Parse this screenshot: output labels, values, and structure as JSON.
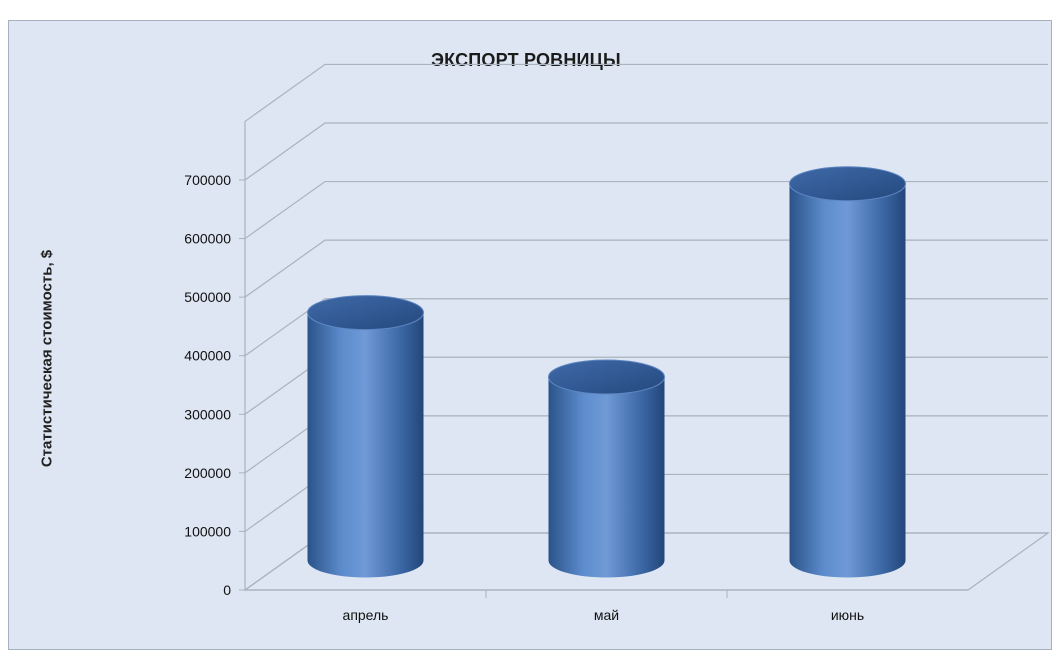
{
  "chart_data": {
    "type": "bar",
    "style": "3d-cylinder",
    "title": "ЭКСПОРТ РОВНИЦЫ",
    "ylabel": "Статистическая стоимость, $",
    "xlabel": "",
    "categories": [
      "апрель",
      "май",
      "июнь"
    ],
    "values": [
      425000,
      315000,
      645000
    ],
    "ylim": [
      0,
      700000
    ],
    "yticks": [
      0,
      100000,
      200000,
      300000,
      400000,
      500000,
      600000,
      700000
    ],
    "ytick_labels": [
      "0",
      "100000",
      "200000",
      "300000",
      "400000",
      "500000",
      "600000",
      "700000"
    ],
    "grid": true,
    "legend": "none",
    "colors": {
      "bar": "#4f81bd",
      "bar_dark": "#254a7c",
      "bar_light": "#7ea6da",
      "plot_background": "#dde6f2",
      "gridline": "#a9b2bd"
    }
  }
}
